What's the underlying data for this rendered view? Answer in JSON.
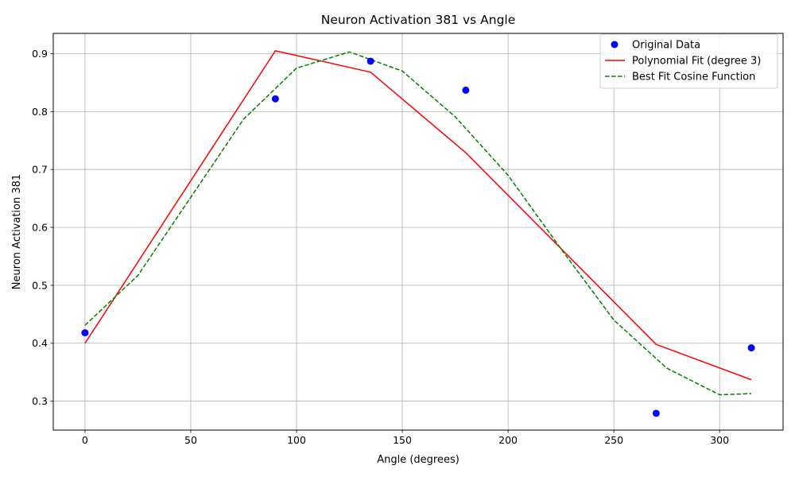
{
  "chart_data": {
    "type": "line",
    "title": "Neuron Activation 381 vs Angle",
    "xlabel": "Angle (degrees)",
    "ylabel": "Neuron Activation 381",
    "xlim": [
      -15,
      330
    ],
    "ylim": [
      0.25,
      0.935
    ],
    "xticks": [
      0,
      50,
      100,
      150,
      200,
      250,
      300
    ],
    "yticks": [
      0.3,
      0.4,
      0.5,
      0.6,
      0.7,
      0.8,
      0.9
    ],
    "xtick_labels": [
      "0",
      "50",
      "100",
      "150",
      "200",
      "250",
      "300"
    ],
    "ytick_labels": [
      "0.3",
      "0.4",
      "0.5",
      "0.6",
      "0.7",
      "0.8",
      "0.9"
    ],
    "grid": true,
    "legend_position": "top-right",
    "series": [
      {
        "name": "Original Data",
        "kind": "scatter",
        "color": "#0000ff",
        "x": [
          0,
          90,
          135,
          180,
          270,
          315
        ],
        "y": [
          0.418,
          0.822,
          0.887,
          0.837,
          0.279,
          0.392
        ]
      },
      {
        "name": "Polynomial Fit (degree 3)",
        "kind": "line",
        "style": "solid",
        "color": "#ff0000",
        "x": [
          0,
          90,
          135,
          180,
          270,
          315
        ],
        "y": [
          0.4,
          0.905,
          0.868,
          0.729,
          0.398,
          0.337
        ]
      },
      {
        "name": "Best Fit Cosine Function",
        "kind": "line",
        "style": "dashed",
        "color": "#008000",
        "x": [
          0,
          25,
          50,
          75,
          100,
          125,
          150,
          175,
          200,
          225,
          250,
          275,
          300,
          315
        ],
        "y": [
          0.431,
          0.517,
          0.652,
          0.787,
          0.875,
          0.903,
          0.87,
          0.791,
          0.69,
          0.563,
          0.44,
          0.357,
          0.311,
          0.313
        ]
      }
    ]
  }
}
